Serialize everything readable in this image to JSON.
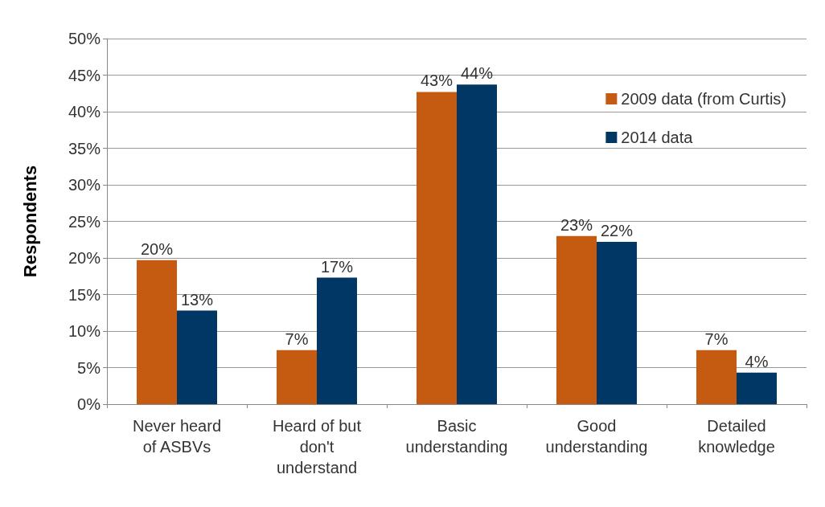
{
  "chart_data": {
    "type": "bar",
    "ylabel": "Respondents",
    "categories": [
      "Never heard\nof ASBVs",
      "Heard of but\ndon't\nunderstand",
      "Basic\nunderstanding",
      "Good\nunderstanding",
      "Detailed\nknowledge"
    ],
    "series": [
      {
        "name": "2009 data (from Curtis)",
        "color": "#c55a11",
        "values": [
          19.7,
          7.4,
          42.7,
          23.0,
          7.4
        ],
        "value_labels": [
          "20%",
          "7%",
          "43%",
          "23%",
          "7%"
        ]
      },
      {
        "name": "2014 data",
        "color": "#003764",
        "values": [
          12.8,
          17.3,
          43.7,
          22.2,
          4.3
        ],
        "value_labels": [
          "13%",
          "17%",
          "44%",
          "22%",
          "4%"
        ]
      }
    ],
    "ylim": [
      0,
      50
    ],
    "yticks": [
      {
        "value": 0,
        "label": "0%"
      },
      {
        "value": 5,
        "label": "5%"
      },
      {
        "value": 10,
        "label": "10%"
      },
      {
        "value": 15,
        "label": "15%"
      },
      {
        "value": 20,
        "label": "20%"
      },
      {
        "value": 25,
        "label": "25%"
      },
      {
        "value": 30,
        "label": "30%"
      },
      {
        "value": 35,
        "label": "35%"
      },
      {
        "value": 40,
        "label": "40%"
      },
      {
        "value": 45,
        "label": "45%"
      },
      {
        "value": 50,
        "label": "50%"
      }
    ],
    "grid": "y",
    "legend": "top right"
  }
}
